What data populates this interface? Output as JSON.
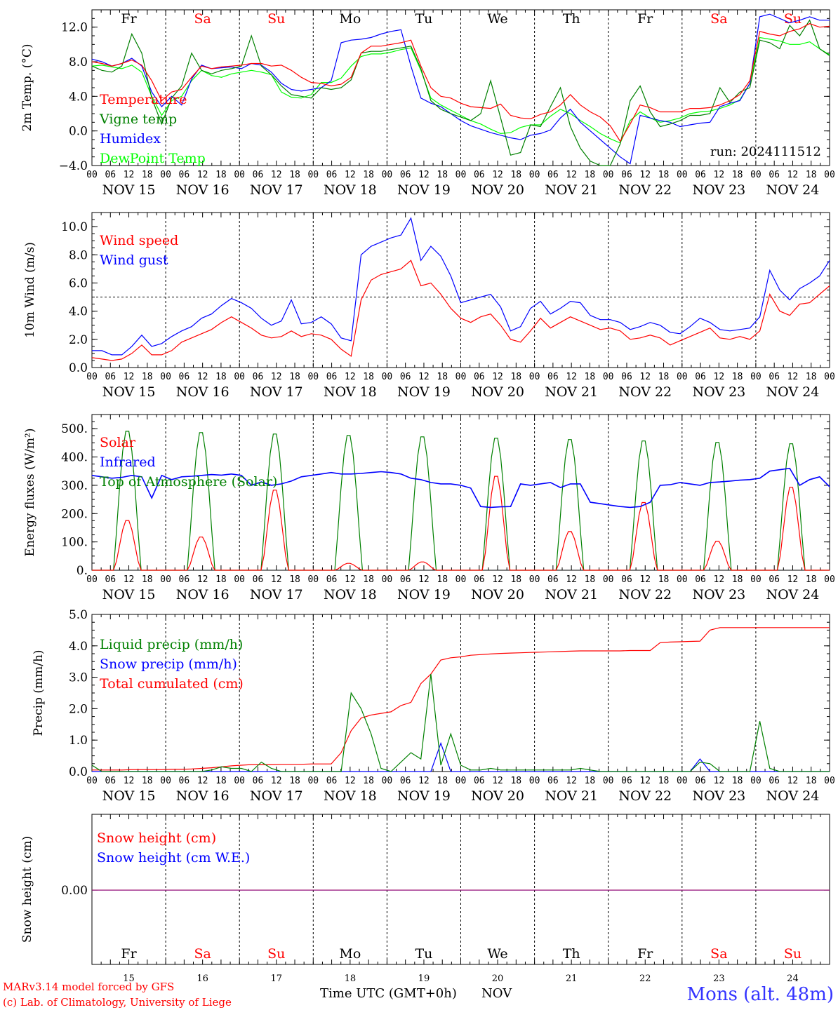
{
  "chart_data": [
    {
      "type": "line",
      "ylabel": "2m Temp. (°C)",
      "ylim": [
        -4,
        14
      ],
      "yticks": [
        -4,
        0,
        4,
        8,
        12
      ],
      "ytick_labels": [
        "−4.0",
        "0.0",
        "4.0",
        "8.0",
        "12.0"
      ],
      "days_top": [
        "Fr",
        "Sa",
        "Su",
        "Mo",
        "Tu",
        "We",
        "Th",
        "Fr",
        "Sa",
        "Su"
      ],
      "day_colors": [
        "#000000",
        "#ff0000",
        "#ff0000",
        "#000000",
        "#000000",
        "#000000",
        "#000000",
        "#000000",
        "#ff0000",
        "#ff0000"
      ],
      "run_label": "run: 2024111512",
      "series": [
        {
          "name": "Temperature",
          "color": "#ff0000",
          "values": [
            8.0,
            7.8,
            7.5,
            7.8,
            8.2,
            7.6,
            5.8,
            3.5,
            4.5,
            4.8,
            6.2,
            7.5,
            7.2,
            7.4,
            7.5,
            7.6,
            7.8,
            7.8,
            7.5,
            7.6,
            7.0,
            6.2,
            5.6,
            5.5,
            5.2,
            5.4,
            6.2,
            9.0,
            9.8,
            9.8,
            10.0,
            10.2,
            10.5,
            7.5,
            5.0,
            4.0,
            3.8,
            3.2,
            2.8,
            2.7,
            2.6,
            3.1,
            1.8,
            1.5,
            1.4,
            1.9,
            2.2,
            3.0,
            4.2,
            3.0,
            2.2,
            1.6,
            0.6,
            -1.2,
            0.8,
            3.0,
            2.7,
            2.2,
            2.2,
            2.2,
            2.6,
            2.6,
            2.7,
            3.0,
            3.5,
            4.2,
            5.8,
            11.5,
            11.2,
            11.0,
            11.5,
            11.8,
            12.4,
            12.0,
            12.1
          ]
        },
        {
          "name": "Vigne temp",
          "color": "#008000",
          "values": [
            7.5,
            7.0,
            6.8,
            7.5,
            11.2,
            9.0,
            3.8,
            0.8,
            3.8,
            5.2,
            9.0,
            7.0,
            6.6,
            7.0,
            7.2,
            7.5,
            11.0,
            7.5,
            6.5,
            5.2,
            4.2,
            4.0,
            3.8,
            5.0,
            4.8,
            5.0,
            5.9,
            9.0,
            9.2,
            9.2,
            9.4,
            9.6,
            9.8,
            7.2,
            3.5,
            2.5,
            2.0,
            1.6,
            1.2,
            2.0,
            5.8,
            1.5,
            -2.8,
            -2.5,
            0.7,
            0.5,
            2.8,
            5.0,
            0.5,
            -2.0,
            -3.5,
            -4.2,
            -6.0,
            -1.5,
            3.5,
            5.2,
            2.2,
            0.5,
            0.8,
            1.2,
            1.8,
            1.8,
            2.0,
            5.0,
            3.3,
            4.5,
            5.0,
            10.5,
            10.2,
            9.5,
            12.2,
            11.0,
            12.8,
            9.5,
            8.7
          ]
        },
        {
          "name": "Humidex",
          "color": "#0000ff",
          "values": [
            8.3,
            8.0,
            7.5,
            7.8,
            8.4,
            7.5,
            4.5,
            2.8,
            4.0,
            3.0,
            6.0,
            7.6,
            7.2,
            7.3,
            7.4,
            7.2,
            7.8,
            7.6,
            6.8,
            5.5,
            4.8,
            4.6,
            4.8,
            5.0,
            5.8,
            10.2,
            10.5,
            10.6,
            10.8,
            11.2,
            11.5,
            11.7,
            7.5,
            3.8,
            3.2,
            2.8,
            2.0,
            1.2,
            0.6,
            0.2,
            -0.2,
            -0.5,
            -0.8,
            -1.0,
            -0.5,
            -0.3,
            0.1,
            1.5,
            2.5,
            1.0,
            0.0,
            -1.0,
            -2.0,
            -3.0,
            -3.8,
            1.8,
            1.5,
            1.2,
            1.0,
            0.5,
            0.7,
            0.9,
            1.0,
            2.8,
            3.2,
            3.5,
            5.5,
            13.2,
            13.5,
            13.0,
            12.5,
            12.8,
            13.2,
            12.8,
            12.8
          ]
        },
        {
          "name": "DewPoint Temp",
          "color": "#00ff00",
          "values": [
            7.5,
            7.6,
            7.4,
            7.2,
            7.6,
            6.8,
            4.0,
            1.8,
            3.5,
            4.0,
            5.8,
            7.0,
            6.4,
            6.2,
            6.6,
            6.8,
            7.0,
            6.8,
            6.5,
            4.5,
            3.9,
            3.8,
            4.2,
            5.6,
            5.6,
            6.1,
            7.5,
            8.6,
            8.9,
            8.9,
            9.1,
            9.4,
            9.6,
            7.0,
            3.8,
            3.0,
            2.4,
            1.8,
            1.2,
            0.8,
            0.2,
            -0.3,
            -0.2,
            0.4,
            0.7,
            0.7,
            1.7,
            2.5,
            2.0,
            1.2,
            0.5,
            -0.3,
            -0.9,
            -1.4,
            1.2,
            2.2,
            1.5,
            1.0,
            1.2,
            1.5,
            2.0,
            2.2,
            2.3,
            2.6,
            3.0,
            3.6,
            5.5,
            10.8,
            10.6,
            10.4,
            10.0,
            10.0,
            10.3,
            9.5,
            8.8
          ]
        }
      ]
    },
    {
      "type": "line",
      "ylabel": "10m Wind (m/s)",
      "ylim": [
        0,
        11
      ],
      "yticks": [
        0,
        2,
        4,
        6,
        8,
        10
      ],
      "ytick_labels": [
        "0.0",
        "2.0",
        "4.0",
        "6.0",
        "8.0",
        "10.0"
      ],
      "reference_line": 5.0,
      "series": [
        {
          "name": "Wind speed",
          "color": "#ff0000",
          "values": [
            0.7,
            0.6,
            0.5,
            0.6,
            1.0,
            1.6,
            0.9,
            0.9,
            1.2,
            1.8,
            2.1,
            2.4,
            2.7,
            3.2,
            3.6,
            3.2,
            2.8,
            2.3,
            2.1,
            2.2,
            2.6,
            2.2,
            2.4,
            2.3,
            2.0,
            1.3,
            0.8,
            4.8,
            6.2,
            6.6,
            6.8,
            7.0,
            7.6,
            5.8,
            6.0,
            5.2,
            4.2,
            3.5,
            3.2,
            3.6,
            3.8,
            3.0,
            2.0,
            1.8,
            2.6,
            3.5,
            2.8,
            3.2,
            3.6,
            3.3,
            3.0,
            2.7,
            2.8,
            2.6,
            2.0,
            2.1,
            2.3,
            2.1,
            1.6,
            1.9,
            2.2,
            2.5,
            2.8,
            2.1,
            2.0,
            2.2,
            2.0,
            2.6,
            5.2,
            4.0,
            3.7,
            4.5,
            4.6,
            5.2,
            5.8
          ]
        },
        {
          "name": "Wind gust",
          "color": "#0000ff",
          "values": [
            1.2,
            1.2,
            0.9,
            0.9,
            1.5,
            2.3,
            1.5,
            1.7,
            2.2,
            2.6,
            2.9,
            3.5,
            3.8,
            4.4,
            4.9,
            4.6,
            4.2,
            3.5,
            3.0,
            3.3,
            4.8,
            3.1,
            3.2,
            3.6,
            3.1,
            2.1,
            1.9,
            8.0,
            8.6,
            8.9,
            9.2,
            9.4,
            10.6,
            7.6,
            8.6,
            7.9,
            6.5,
            4.6,
            4.8,
            5.0,
            5.2,
            4.3,
            2.6,
            2.9,
            4.2,
            4.7,
            3.8,
            4.2,
            4.7,
            4.6,
            3.7,
            3.4,
            3.4,
            3.2,
            2.7,
            2.9,
            3.2,
            3.0,
            2.5,
            2.4,
            2.9,
            3.5,
            3.2,
            2.7,
            2.6,
            2.7,
            2.8,
            3.6,
            6.9,
            5.5,
            4.8,
            5.6,
            6.0,
            6.5,
            7.6
          ]
        }
      ]
    },
    {
      "type": "line",
      "ylabel": "Energy fluxes (W/m²)",
      "ylim": [
        0,
        550
      ],
      "yticks": [
        0,
        100,
        200,
        300,
        400,
        500
      ],
      "ytick_labels": [
        "0.",
        "100.",
        "200.",
        "300.",
        "400.",
        "500."
      ],
      "day_peaks": {
        "Solar": [
          180,
          120,
          290,
          25,
          30,
          340,
          140,
          245,
          105,
          300
        ],
        "Top of Atmosphere (Solar)": [
          500,
          495,
          490,
          485,
          480,
          475,
          470,
          465,
          460,
          455
        ]
      },
      "series": [
        {
          "name": "Solar",
          "color": "#ff0000"
        },
        {
          "name": "Infrared",
          "color": "#0000ff",
          "values": [
            335,
            330,
            325,
            328,
            335,
            330,
            255,
            335,
            320,
            330,
            332,
            335,
            338,
            336,
            340,
            335,
            300,
            312,
            300,
            305,
            315,
            330,
            335,
            340,
            345,
            340,
            340,
            342,
            345,
            348,
            345,
            340,
            325,
            320,
            310,
            305,
            305,
            300,
            290,
            225,
            222,
            224,
            225,
            305,
            300,
            305,
            310,
            292,
            305,
            305,
            240,
            235,
            230,
            225,
            222,
            225,
            240,
            300,
            302,
            310,
            305,
            300,
            310,
            312,
            315,
            318,
            320,
            325,
            350,
            355,
            360,
            300,
            320,
            330,
            295
          ]
        },
        {
          "name": "Top of Atmosphere (Solar)",
          "color": "#008000"
        }
      ]
    },
    {
      "type": "line",
      "ylabel": "Precip (mm/h)",
      "ylim": [
        0,
        5
      ],
      "yticks": [
        0,
        1,
        2,
        3,
        4,
        5
      ],
      "ytick_labels": [
        "0.0",
        "1.0",
        "2.0",
        "3.0",
        "4.0",
        "5.0"
      ],
      "series": [
        {
          "name": "Liquid precip (mm/h)",
          "color": "#008000",
          "values": [
            0.2,
            0,
            0,
            0,
            0,
            0,
            0,
            0,
            0,
            0,
            0,
            0,
            0.05,
            0.15,
            0.1,
            0.1,
            0,
            0.3,
            0.1,
            0,
            0,
            0,
            0,
            0,
            0,
            0,
            2.5,
            2.0,
            1.2,
            0.1,
            0,
            0.3,
            0.6,
            0.4,
            3.1,
            0.2,
            1.2,
            0.2,
            0.05,
            0.05,
            0.1,
            0.05,
            0.05,
            0.05,
            0.05,
            0.05,
            0.05,
            0.05,
            0.05,
            0.1,
            0.05,
            0,
            0,
            0,
            0,
            0,
            0,
            0,
            0,
            0,
            0,
            0.3,
            0.25,
            0,
            0,
            0,
            0,
            1.6,
            0.1,
            0,
            0,
            0,
            0,
            0,
            0
          ]
        },
        {
          "name": "Snow precip (mm/h)",
          "color": "#0000ff",
          "values": [
            0,
            0,
            0,
            0,
            0,
            0,
            0,
            0,
            0,
            0,
            0,
            0,
            0,
            0,
            0,
            0,
            0,
            0,
            0,
            0,
            0,
            0,
            0,
            0,
            0,
            0,
            0,
            0,
            0,
            0,
            0,
            0,
            0,
            0,
            0,
            0.9,
            0,
            0,
            0,
            0,
            0,
            0,
            0,
            0,
            0,
            0,
            0,
            0,
            0,
            0,
            0,
            0,
            0,
            0,
            0,
            0,
            0,
            0,
            0,
            0,
            0,
            0.4,
            0,
            0,
            0,
            0,
            0,
            0,
            0,
            0,
            0,
            0,
            0,
            0,
            0
          ]
        },
        {
          "name": "Total cumulated (cm)",
          "color": "#ff0000",
          "values": [
            0.05,
            0.05,
            0.05,
            0.05,
            0.06,
            0.06,
            0.06,
            0.06,
            0.07,
            0.07,
            0.08,
            0.1,
            0.12,
            0.15,
            0.18,
            0.2,
            0.22,
            0.22,
            0.22,
            0.23,
            0.23,
            0.23,
            0.24,
            0.24,
            0.24,
            0.6,
            1.3,
            1.7,
            1.8,
            1.85,
            1.9,
            2.1,
            2.2,
            2.8,
            3.1,
            3.55,
            3.62,
            3.65,
            3.7,
            3.72,
            3.74,
            3.76,
            3.77,
            3.78,
            3.79,
            3.8,
            3.81,
            3.82,
            3.83,
            3.84,
            3.84,
            3.84,
            3.84,
            3.84,
            3.85,
            3.85,
            3.85,
            4.1,
            4.12,
            4.13,
            4.14,
            4.15,
            4.5,
            4.58,
            4.58,
            4.58,
            4.58,
            4.58,
            4.58,
            4.58,
            4.58,
            4.58,
            4.58,
            4.58,
            4.58
          ]
        }
      ]
    },
    {
      "type": "line",
      "ylabel": "Snow height (cm)",
      "yticks": [
        0
      ],
      "ytick_labels": [
        "0.00"
      ],
      "series": [
        {
          "name": "Snow height (cm)",
          "color": "#ff0000",
          "values": [
            0,
            0
          ]
        },
        {
          "name": "Snow height (cm W.E.)",
          "color": "#0000ff",
          "values": [
            0,
            0
          ]
        }
      ],
      "days_bottom": [
        "Fr",
        "Sa",
        "Su",
        "Mo",
        "Tu",
        "We",
        "Th",
        "Fr",
        "Sa",
        "Su"
      ],
      "day_numbers": [
        "15",
        "16",
        "17",
        "18",
        "19",
        "20",
        "21",
        "22",
        "23",
        "24"
      ],
      "xlabel": "Time UTC (GMT+0h)",
      "month": "NOV"
    }
  ],
  "x_axis": {
    "hour_labels": [
      "00",
      "06",
      "12",
      "18"
    ],
    "final_label": "00",
    "date_labels": [
      "NOV 15",
      "NOV 16",
      "NOV 17",
      "NOV 18",
      "NOV 19",
      "NOV 20",
      "NOV 21",
      "NOV 22",
      "NOV 23",
      "NOV 24"
    ]
  },
  "footer": {
    "model_line": "MARv3.14 model forced by GFS",
    "credit_line": "(c) Lab. of Climatology, University of Liege",
    "station": "Mons (alt. 48m)"
  }
}
